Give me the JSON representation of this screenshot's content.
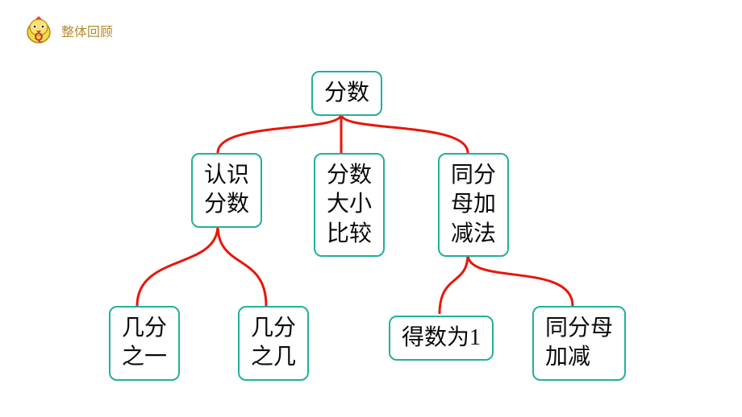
{
  "header": {
    "title": "整体回顾",
    "title_color": "#b68a2a",
    "icon_name": "chick-q-icon"
  },
  "diagram": {
    "type": "tree",
    "connector_color": "#e8160c",
    "connector_width": 3,
    "node_text_color": "#0a0a0a",
    "node_border_color": "#22b09b",
    "nodes": {
      "root": {
        "label": "分数"
      },
      "l1a": {
        "label": "认识\n分数"
      },
      "l1b": {
        "label": "分数\n大小\n比较"
      },
      "l1c": {
        "label": "同分\n母加\n减法"
      },
      "l2a": {
        "label": "几分\n之一"
      },
      "l2b": {
        "label": "几分\n之几"
      },
      "l2c": {
        "label": "得数为1"
      },
      "l2d": {
        "label": "同分母\n加减"
      }
    },
    "edges": [
      {
        "from": "root",
        "to": [
          "l1a",
          "l1b",
          "l1c"
        ]
      },
      {
        "from": "l1a",
        "to": [
          "l2a",
          "l2b"
        ]
      },
      {
        "from": "l1c",
        "to": [
          "l2c",
          "l2d"
        ]
      }
    ]
  }
}
